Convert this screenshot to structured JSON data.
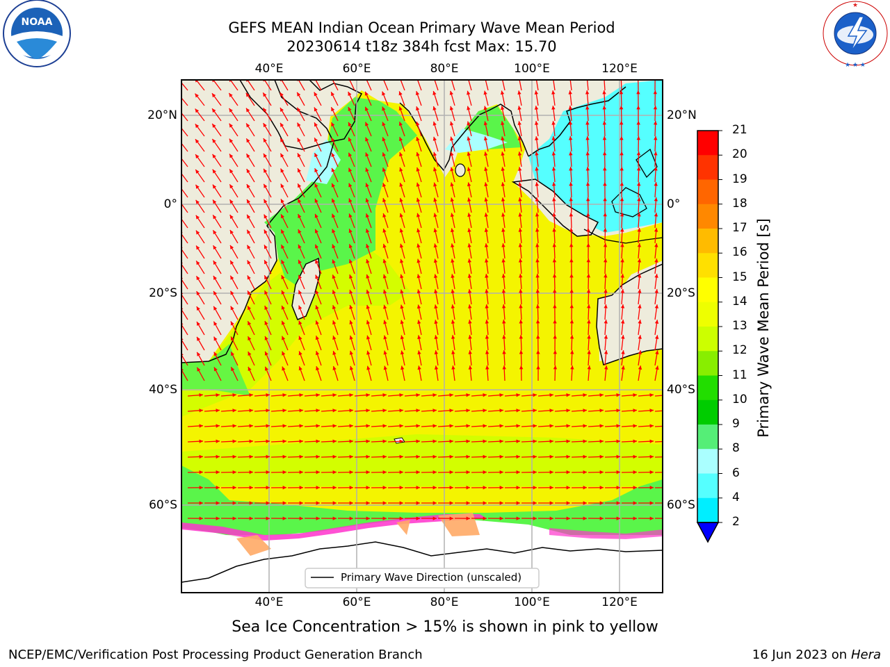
{
  "title_line1": "GEFS MEAN Indian Ocean Primary Wave Mean Period",
  "title_line2": "20230614 t18z 384h fcst   Max: 15.70",
  "logos": {
    "left": {
      "icon": "noaa-logo",
      "text": "NOAA"
    },
    "right": {
      "icon": "nws-logo",
      "text": "NATIONAL WEATHER SERVICE"
    }
  },
  "map": {
    "lon_ticks": [
      "40°E",
      "60°E",
      "80°E",
      "100°E",
      "120°E"
    ],
    "lat_ticks_left": [
      "20°N",
      "0°",
      "20°S",
      "40°S",
      "60°S"
    ],
    "lat_ticks_right": [
      "20°N",
      "0°",
      "20°S",
      "40°S",
      "60°S"
    ],
    "legend_label": "Primary Wave Direction (unscaled)",
    "colors": {
      "land": "#eeecdc",
      "ocean_yellow": "#f4f400",
      "ocean_lime": "#ccff00",
      "ocean_green": "#5af54a",
      "arrow": "#ff0000",
      "ice_pink": "#ff33cc",
      "ice_orange": "#ffaa66"
    }
  },
  "colorbar": {
    "title": "Primary Wave Mean Period [s]",
    "labels": [
      "21",
      "20",
      "19",
      "18",
      "17",
      "16",
      "15",
      "14",
      "13",
      "12",
      "11",
      "10",
      "9",
      "8",
      "6",
      "4",
      "2"
    ],
    "colors": [
      "#ff0000",
      "#ff3300",
      "#ff6600",
      "#ff8800",
      "#ffbb00",
      "#ffe000",
      "#ffff00",
      "#eeff00",
      "#ccff00",
      "#88ee00",
      "#22dd00",
      "#00cc00",
      "#55ee77",
      "#aaffff",
      "#55ffff",
      "#00eeff",
      "#0088ff",
      "#0000ff"
    ]
  },
  "subtitle": "Sea Ice Concentration > 15% is shown in pink to yellow",
  "footer_left": "NCEP/EMC/Verification Post Processing Product Generation Branch",
  "footer_right_date": "16 Jun 2023 on",
  "footer_right_host": "Hera"
}
